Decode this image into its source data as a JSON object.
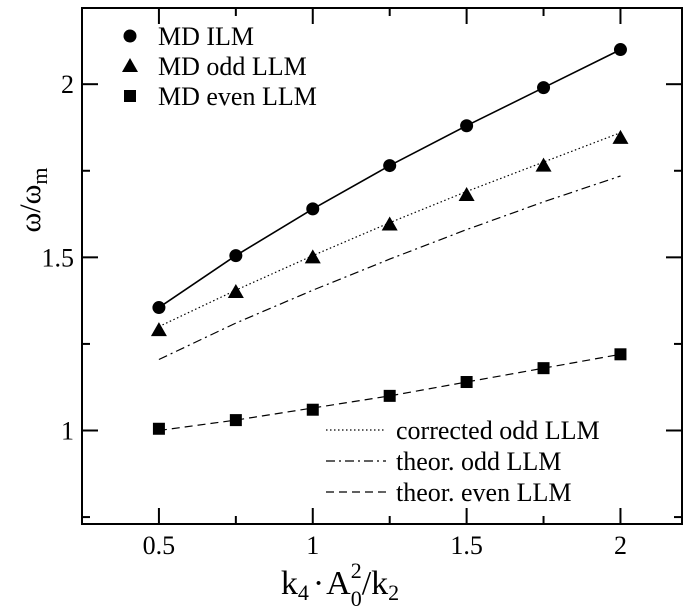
{
  "chart_data": {
    "type": "line",
    "title": "",
    "xlabel": {
      "main": "k",
      "main_sub": "4",
      "dot": "·",
      "a": "A",
      "a_sup": "2",
      "a_sub": "0",
      "slash": "/k",
      "tail_sub": "2"
    },
    "ylabel": {
      "main": "ω/ω",
      "sub": "m"
    },
    "xlim": [
      0.25,
      2.2
    ],
    "ylim": [
      0.73,
      2.22
    ],
    "xticks": [
      0.5,
      1,
      1.5,
      2
    ],
    "xtick_labels": [
      "0.5",
      "1",
      "1.5",
      "2"
    ],
    "yticks": [
      1,
      1.5,
      2
    ],
    "ytick_labels": [
      "1",
      "1.5",
      "2"
    ],
    "grid": false,
    "legend_placement": "top-left (markers), bottom-right (lines)",
    "series": [
      {
        "name": "MD ILM",
        "marker": "circle",
        "line": "solid",
        "x": [
          0.5,
          0.75,
          1.0,
          1.25,
          1.5,
          1.75,
          2.0
        ],
        "y": [
          1.355,
          1.505,
          1.64,
          1.765,
          1.88,
          1.99,
          2.1
        ]
      },
      {
        "name": "MD odd LLM",
        "marker": "triangle",
        "x": [
          0.5,
          0.75,
          1.0,
          1.25,
          1.5,
          1.75,
          2.0
        ],
        "y": [
          1.29,
          1.4,
          1.5,
          1.595,
          1.68,
          1.765,
          1.845
        ]
      },
      {
        "name": "MD even LLM",
        "marker": "square",
        "x": [
          0.5,
          0.75,
          1.0,
          1.25,
          1.5,
          1.75,
          2.0
        ],
        "y": [
          1.005,
          1.03,
          1.06,
          1.1,
          1.14,
          1.18,
          1.22
        ]
      },
      {
        "name": "corrected odd LLM",
        "marker": "none",
        "line": "dotted",
        "x": [
          0.5,
          0.75,
          1.0,
          1.25,
          1.5,
          1.75,
          2.0
        ],
        "y": [
          1.3,
          1.405,
          1.505,
          1.6,
          1.69,
          1.775,
          1.86
        ]
      },
      {
        "name": "theor. odd LLM",
        "marker": "none",
        "line": "dashdot",
        "x": [
          0.5,
          0.75,
          1.0,
          1.25,
          1.5,
          1.75,
          2.0
        ],
        "y": [
          1.205,
          1.31,
          1.405,
          1.495,
          1.58,
          1.66,
          1.735
        ]
      },
      {
        "name": "theor. even LLM",
        "marker": "none",
        "line": "dashed",
        "x": [
          0.5,
          0.75,
          1.0,
          1.25,
          1.5,
          1.75,
          2.0
        ],
        "y": [
          1.0,
          1.03,
          1.065,
          1.1,
          1.14,
          1.18,
          1.22
        ]
      }
    ]
  }
}
